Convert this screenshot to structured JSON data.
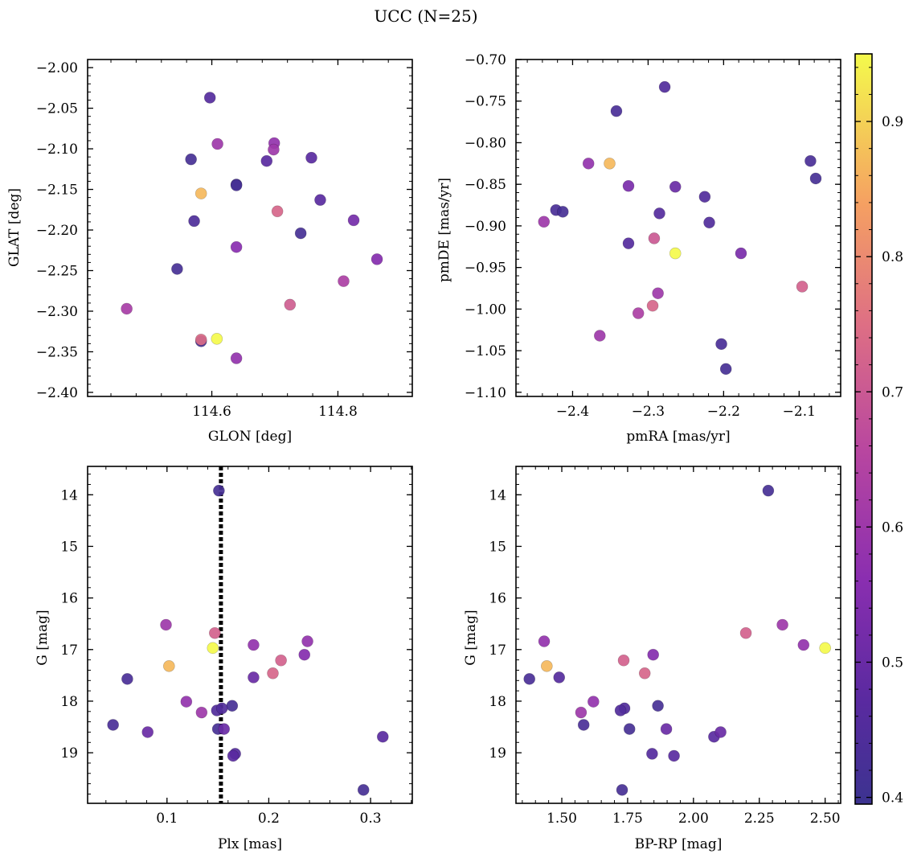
{
  "figure": {
    "title": "UCC (N=25)"
  },
  "colorbar": {
    "range": [
      0.395,
      0.95
    ],
    "ticks": [
      0.4,
      0.5,
      0.6,
      0.7,
      0.8,
      0.9
    ],
    "tick_labels": [
      "0.4",
      "0.5",
      "0.6",
      "0.7",
      "0.8",
      "0.9"
    ]
  },
  "chart_data": [
    {
      "type": "scatter",
      "title": "",
      "xlabel": "GLON [deg]",
      "ylabel": "GLAT [deg]",
      "xlim": [
        114.403,
        114.918
      ],
      "ylim": [
        -2.405,
        -1.99
      ],
      "y_inverted": false,
      "xticks": [
        114.6,
        114.8
      ],
      "xtick_labels": [
        "114.6",
        "114.8"
      ],
      "yticks": [
        -2.4,
        -2.35,
        -2.3,
        -2.25,
        -2.2,
        -2.15,
        -2.1,
        -2.05,
        -2.0
      ],
      "ytick_labels": [
        "−2.40",
        "−2.35",
        "−2.30",
        "−2.25",
        "−2.20",
        "−2.15",
        "−2.10",
        "−2.05",
        "−2.00"
      ],
      "x": [
        114.597,
        114.567,
        114.609,
        114.699,
        114.698,
        114.687,
        114.758,
        114.639,
        114.639,
        114.583,
        114.704,
        114.772,
        114.572,
        114.825,
        114.741,
        114.639,
        114.862,
        114.545,
        114.809,
        114.724,
        114.465,
        114.583,
        114.583,
        114.608,
        114.639
      ],
      "y": [
        -2.037,
        -2.113,
        -2.094,
        -2.093,
        -2.101,
        -2.115,
        -2.111,
        -2.144,
        -2.145,
        -2.155,
        -2.177,
        -2.163,
        -2.189,
        -2.188,
        -2.204,
        -2.221,
        -2.236,
        -2.248,
        -2.263,
        -2.292,
        -2.297,
        -2.337,
        -2.335,
        -2.334,
        -2.358
      ],
      "color_values": [
        0.46,
        0.42,
        0.6,
        0.58,
        0.6,
        0.47,
        0.47,
        0.42,
        0.42,
        0.87,
        0.73,
        0.47,
        0.44,
        0.52,
        0.42,
        0.56,
        0.55,
        0.42,
        0.63,
        0.71,
        0.62,
        0.42,
        0.74,
        0.95,
        0.58
      ]
    },
    {
      "type": "scatter",
      "title": "",
      "xlabel": "pmRA [mas/yr]",
      "ylabel": "pmDE [mas/yr]",
      "xlim": [
        -2.475,
        -2.045
      ],
      "ylim": [
        -1.105,
        -0.7
      ],
      "y_inverted": false,
      "xticks": [
        -2.4,
        -2.3,
        -2.2,
        -2.1
      ],
      "xtick_labels": [
        "−2.4",
        "−2.3",
        "−2.2",
        "−2.1"
      ],
      "yticks": [
        -1.1,
        -1.05,
        -1.0,
        -0.95,
        -0.9,
        -0.85,
        -0.8,
        -0.75,
        -0.7
      ],
      "ytick_labels": [
        "−1.10",
        "−1.05",
        "−1.00",
        "−0.95",
        "−0.90",
        "−0.85",
        "−0.80",
        "−0.75",
        "−0.70"
      ],
      "x": [
        -2.278,
        -2.342,
        -2.085,
        -2.078,
        -2.379,
        -2.351,
        -2.326,
        -2.264,
        -2.225,
        -2.422,
        -2.413,
        -2.285,
        -2.219,
        -2.438,
        -2.326,
        -2.292,
        -2.264,
        -2.177,
        -2.287,
        -2.096,
        -2.294,
        -2.313,
        -2.364,
        -2.203,
        -2.197
      ],
      "y": [
        -0.733,
        -0.762,
        -0.822,
        -0.843,
        -0.825,
        -0.825,
        -0.852,
        -0.853,
        -0.865,
        -0.881,
        -0.883,
        -0.885,
        -0.896,
        -0.895,
        -0.921,
        -0.915,
        -0.933,
        -0.933,
        -0.981,
        -0.973,
        -0.996,
        -1.005,
        -1.032,
        -1.042,
        -1.072
      ],
      "color_values": [
        0.45,
        0.43,
        0.43,
        0.42,
        0.58,
        0.87,
        0.53,
        0.5,
        0.45,
        0.43,
        0.42,
        0.46,
        0.45,
        0.6,
        0.46,
        0.7,
        0.95,
        0.53,
        0.6,
        0.72,
        0.73,
        0.63,
        0.6,
        0.43,
        0.42
      ]
    },
    {
      "type": "scatter",
      "title": "",
      "xlabel": "Plx [mas]",
      "ylabel": "G [mag]",
      "xlim": [
        0.022,
        0.341
      ],
      "ylim": [
        19.98,
        13.45
      ],
      "y_inverted": true,
      "xticks": [
        0.1,
        0.2,
        0.3
      ],
      "xtick_labels": [
        "0.1",
        "0.2",
        "0.3"
      ],
      "yticks": [
        14,
        15,
        16,
        17,
        18,
        19
      ],
      "ytick_labels": [
        "14",
        "15",
        "16",
        "17",
        "18",
        "19"
      ],
      "vline": {
        "x": 0.153,
        "style": "dotted"
      },
      "x": [
        0.151,
        0.099,
        0.147,
        0.145,
        0.102,
        0.185,
        0.212,
        0.204,
        0.235,
        0.238,
        0.185,
        0.061,
        0.119,
        0.134,
        0.164,
        0.149,
        0.154,
        0.047,
        0.081,
        0.15,
        0.156,
        0.167,
        0.165,
        0.312,
        0.293
      ],
      "y": [
        13.92,
        16.52,
        16.68,
        16.97,
        17.32,
        16.91,
        17.21,
        17.46,
        17.1,
        16.84,
        17.54,
        17.57,
        18.01,
        18.22,
        18.09,
        18.18,
        18.14,
        18.46,
        18.6,
        18.54,
        18.54,
        19.02,
        19.06,
        18.69,
        19.72
      ],
      "color_values": [
        0.42,
        0.6,
        0.72,
        0.95,
        0.87,
        0.58,
        0.72,
        0.73,
        0.55,
        0.58,
        0.5,
        0.43,
        0.58,
        0.6,
        0.42,
        0.45,
        0.45,
        0.43,
        0.5,
        0.42,
        0.5,
        0.46,
        0.47,
        0.47,
        0.42
      ]
    },
    {
      "type": "scatter",
      "title": "",
      "xlabel": "BP-RP [mag]",
      "ylabel": "G [mag]",
      "xlim": [
        1.326,
        2.559
      ],
      "ylim": [
        19.98,
        13.45
      ],
      "y_inverted": true,
      "xticks": [
        1.5,
        1.75,
        2.0,
        2.25,
        2.5
      ],
      "xtick_labels": [
        "1.50",
        "1.75",
        "2.00",
        "2.25",
        "2.50"
      ],
      "yticks": [
        14,
        15,
        16,
        17,
        18,
        19
      ],
      "ytick_labels": [
        "14",
        "15",
        "16",
        "17",
        "18",
        "19"
      ],
      "x": [
        2.284,
        2.338,
        2.199,
        2.5,
        1.443,
        2.418,
        1.433,
        1.847,
        1.735,
        1.815,
        1.377,
        1.49,
        1.62,
        1.573,
        1.865,
        1.738,
        1.723,
        1.583,
        1.757,
        1.897,
        1.843,
        1.926,
        2.078,
        2.103,
        1.729
      ],
      "y": [
        13.92,
        16.52,
        16.68,
        16.97,
        17.32,
        16.91,
        16.84,
        17.1,
        17.21,
        17.46,
        17.57,
        17.54,
        18.01,
        18.22,
        18.09,
        18.14,
        18.18,
        18.46,
        18.54,
        18.54,
        19.02,
        19.06,
        18.69,
        18.6,
        19.72
      ],
      "color_values": [
        0.42,
        0.6,
        0.72,
        0.95,
        0.87,
        0.58,
        0.58,
        0.55,
        0.72,
        0.73,
        0.43,
        0.46,
        0.58,
        0.6,
        0.42,
        0.45,
        0.45,
        0.43,
        0.42,
        0.5,
        0.46,
        0.47,
        0.47,
        0.5,
        0.42
      ]
    }
  ]
}
